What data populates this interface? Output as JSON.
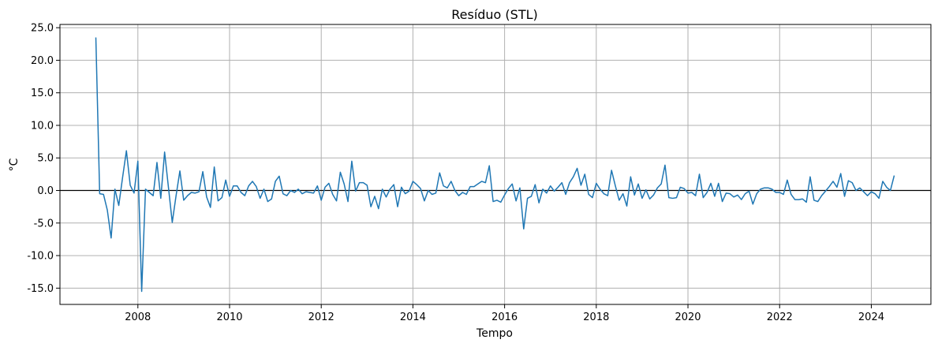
{
  "chart_data": {
    "type": "line",
    "title": "Resíduo (STL)",
    "xlabel": "Tempo",
    "ylabel": "°C",
    "xlim": [
      2006.3,
      2025.3
    ],
    "ylim": [
      -17.5,
      25.5
    ],
    "grid": true,
    "reference_line": {
      "y": 0,
      "color": "#000000"
    },
    "series_color": "#1f77b4",
    "x_ticks": [
      2008,
      2010,
      2012,
      2014,
      2016,
      2018,
      2020,
      2022,
      2024
    ],
    "x_tick_labels": [
      "2008",
      "2010",
      "2012",
      "2014",
      "2016",
      "2018",
      "2020",
      "2022",
      "2024"
    ],
    "y_ticks": [
      -15,
      -10,
      -5,
      0,
      5,
      10,
      15,
      20,
      25
    ],
    "y_tick_labels": [
      "-15.0",
      "-10.0",
      "-5.0",
      "0.0",
      "5.0",
      "10.0",
      "15.0",
      "20.0",
      "25.0"
    ],
    "series": [
      {
        "start": 2007.083,
        "step": 0.0833333,
        "values": [
          23.5,
          -0.5,
          -0.6,
          -3.0,
          -7.3,
          0.2,
          -2.3,
          2.0,
          6.1,
          0.8,
          -0.4,
          4.5,
          -15.5,
          0.2,
          -0.3,
          -0.8,
          4.3,
          -1.2,
          5.9,
          0.5,
          -4.9,
          -0.8,
          3.0,
          -1.5,
          -0.8,
          -0.3,
          -0.4,
          -0.2,
          2.9,
          -1.0,
          -2.6,
          3.6,
          -1.6,
          -1.1,
          1.6,
          -0.9,
          0.7,
          0.7,
          -0.3,
          -0.8,
          0.7,
          1.4,
          0.6,
          -1.2,
          0.2,
          -1.7,
          -1.3,
          1.4,
          2.2,
          -0.5,
          -0.8,
          0.0,
          -0.3,
          0.2,
          -0.5,
          -0.2,
          -0.3,
          -0.4,
          0.7,
          -1.5,
          0.5,
          1.1,
          -0.6,
          -1.6,
          2.8,
          1.0,
          -1.7,
          4.5,
          -0.1,
          1.2,
          1.2,
          0.8,
          -2.5,
          -0.9,
          -2.8,
          0.2,
          -1.0,
          0.2,
          0.9,
          -2.5,
          0.5,
          -0.5,
          -0.1,
          1.4,
          0.9,
          0.3,
          -1.6,
          0.0,
          -0.6,
          -0.4,
          2.7,
          0.7,
          0.4,
          1.4,
          0.0,
          -0.8,
          -0.3,
          -0.6,
          0.6,
          0.6,
          1.0,
          1.4,
          1.2,
          3.8,
          -1.7,
          -1.5,
          -1.8,
          -0.7,
          0.3,
          1.0,
          -1.6,
          0.4,
          -5.9,
          -1.2,
          -0.9,
          0.9,
          -1.9,
          0.2,
          -0.4,
          0.7,
          -0.1,
          0.5,
          1.2,
          -0.6,
          1.2,
          2.1,
          3.4,
          0.8,
          2.5,
          -0.6,
          -1.1,
          1.1,
          0.2,
          -0.5,
          -0.8,
          3.1,
          0.7,
          -1.5,
          -0.5,
          -2.4,
          2.1,
          -0.7,
          1.0,
          -1.2,
          0.1,
          -1.3,
          -0.7,
          0.4,
          1.0,
          3.9,
          -1.1,
          -1.2,
          -1.1,
          0.5,
          0.3,
          -0.4,
          -0.3,
          -0.8,
          2.5,
          -1.1,
          -0.3,
          1.1,
          -0.9,
          1.1,
          -1.7,
          -0.4,
          -0.5,
          -1.0,
          -0.7,
          -1.4,
          -0.5,
          -0.1,
          -2.1,
          -0.5,
          0.2,
          0.4,
          0.4,
          0.2,
          -0.3,
          -0.3,
          -0.6,
          1.6,
          -0.6,
          -1.4,
          -1.4,
          -1.3,
          -1.8,
          2.1,
          -1.5,
          -1.7,
          -0.8,
          -0.1,
          0.6,
          1.4,
          0.5,
          2.6,
          -0.9,
          1.5,
          1.2,
          0.0,
          0.4,
          -0.2,
          -0.8,
          -0.2,
          -0.5,
          -1.2,
          1.4,
          0.5,
          0.0,
          2.3
        ]
      }
    ]
  }
}
